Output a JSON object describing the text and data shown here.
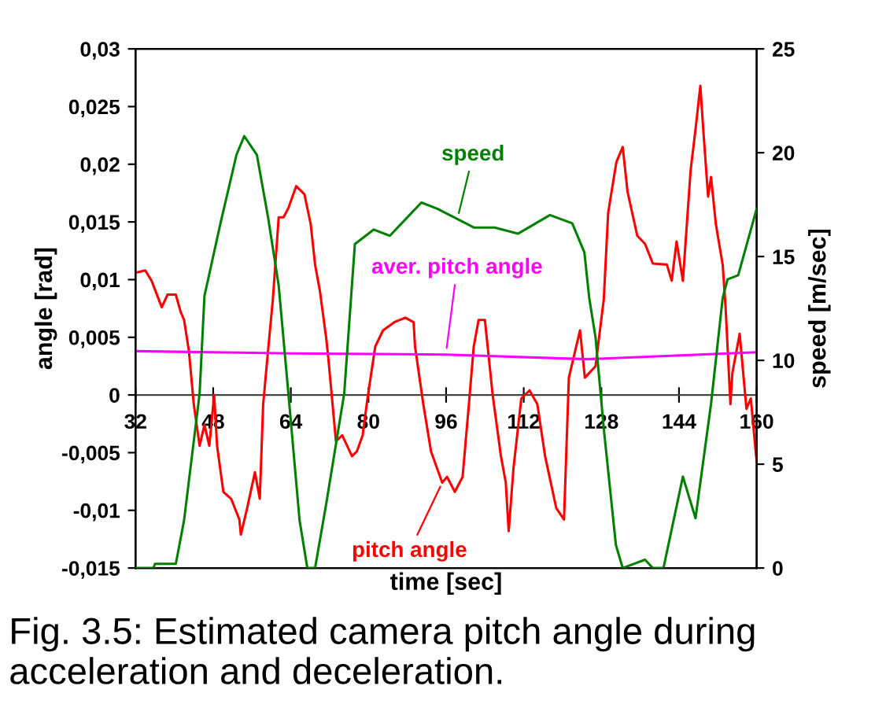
{
  "chart_data": {
    "type": "line",
    "xlabel": "time [sec]",
    "ylabel": "angle [rad]",
    "y2label": "speed [m/sec]",
    "xlim": [
      32,
      160
    ],
    "xticks": [
      32,
      48,
      64,
      80,
      96,
      112,
      128,
      144,
      160
    ],
    "ylim": [
      -0.015,
      0.03
    ],
    "yticks": [
      {
        "value": -0.015,
        "label": "-0,015"
      },
      {
        "value": -0.01,
        "label": "-0,01"
      },
      {
        "value": -0.005,
        "label": "-0,005"
      },
      0,
      {
        "value": 0.005,
        "label": "0,005"
      },
      {
        "value": 0.01,
        "label": "0,01"
      },
      {
        "value": 0.015,
        "label": "0,015"
      },
      {
        "value": 0.02,
        "label": "0,02"
      },
      {
        "value": 0.025,
        "label": "0,025"
      },
      {
        "value": 0.03,
        "label": "0,03"
      }
    ],
    "y2lim": [
      0,
      25
    ],
    "y2ticks": [
      0,
      5,
      10,
      15,
      20,
      25
    ],
    "grid": false,
    "legend": false,
    "marker": "none",
    "line_style": "solid",
    "series": [
      {
        "color": "#ff0000",
        "x": [
          32,
          34,
          35.3,
          37.4,
          38.6,
          40.3,
          41.3,
          42,
          43,
          44,
          45.2,
          46.2,
          47.2,
          48.2,
          48.8,
          50.1,
          51.7,
          53.4,
          53.7,
          55,
          56.6,
          57.6,
          58.3,
          59.3,
          60.3,
          61.5,
          62.5,
          63.5,
          65.1,
          66.8,
          68.1,
          69,
          70,
          71.3,
          71.7,
          73.3,
          74.6,
          76.6,
          77.6,
          78.8,
          79.8,
          81.4,
          83,
          85.3,
          87.6,
          89.3,
          89.6,
          91.3,
          92.9,
          95.2,
          96.2,
          97.8,
          99.4,
          100.7,
          101.7,
          102.7,
          104,
          105.6,
          107.3,
          108.3,
          108.9,
          109.9,
          111.5,
          113.2,
          114.8,
          116.4,
          118.7,
          120.3,
          121.3,
          123.6,
          124.6,
          126.8,
          128.5,
          129.4,
          131.1,
          132.4,
          133.4,
          135.4,
          137,
          138.6,
          141.5,
          142.5,
          143.5,
          144.8,
          146.4,
          147.4,
          148.4,
          149,
          150,
          150.6,
          151.6,
          153,
          153.6,
          154.6,
          155,
          156.5,
          157.9,
          158.8,
          159.8,
          160
        ],
        "values": [
          0.0106,
          0.0108,
          0.0099,
          0.0076,
          0.0087,
          0.0087,
          0.0072,
          0.0065,
          0.0038,
          -0.0008,
          -0.0044,
          -0.0026,
          -0.0044,
          0.0,
          -0.0044,
          -0.0084,
          -0.009,
          -0.0108,
          -0.0121,
          -0.0098,
          -0.0067,
          -0.009,
          -0.0008,
          0.0038,
          0.0083,
          0.0154,
          0.0154,
          0.0162,
          0.0181,
          0.0174,
          0.0148,
          0.0113,
          0.009,
          0.0049,
          0.0033,
          -0.004,
          -0.0035,
          -0.0053,
          -0.0049,
          -0.0035,
          -0.0003,
          0.0042,
          0.0056,
          0.0063,
          0.0067,
          0.0063,
          0.0042,
          -0.0008,
          -0.0049,
          -0.0076,
          -0.0071,
          -0.0084,
          -0.0071,
          -0.0008,
          0.0042,
          0.0065,
          0.0065,
          0.0,
          -0.0053,
          -0.0076,
          -0.0118,
          -0.0063,
          -0.0003,
          0.0004,
          -0.0008,
          -0.0053,
          -0.0098,
          -0.0108,
          0.0015,
          0.0056,
          0.0015,
          0.0025,
          0.0083,
          0.0158,
          0.0202,
          0.0215,
          0.0176,
          0.0138,
          0.0131,
          0.0114,
          0.0113,
          0.0099,
          0.0133,
          0.0099,
          0.0195,
          0.023,
          0.0268,
          0.023,
          0.0172,
          0.0189,
          0.0148,
          0.0113,
          0.0076,
          -0.0008,
          0.0019,
          0.0053,
          -0.0012,
          -0.0003,
          -0.0049,
          -0.0057
        ]
      },
      {
        "color": "#ff00ff",
        "x": [
          32,
          64,
          96,
          125,
          160
        ],
        "values": [
          0.0038,
          0.0036,
          0.0035,
          0.0031,
          0.0037
        ]
      },
      {
        "color": "#008000",
        "axis": "y2",
        "x": [
          32,
          35.7,
          36,
          40.3,
          42,
          45.2,
          46.2,
          49.5,
          52.8,
          54.4,
          57,
          59.3,
          61.5,
          63.5,
          65.8,
          67.4,
          69,
          71.3,
          75,
          77.2,
          81.1,
          84.4,
          90.9,
          94.2,
          98.4,
          101.7,
          106,
          110.8,
          117.4,
          122,
          124.5,
          125.5,
          126.8,
          128.5,
          131,
          132.4,
          137,
          138.6,
          140.8,
          144.8,
          147.4,
          150.6,
          153,
          154,
          156.2,
          160
        ],
        "values": [
          0,
          0,
          0.2,
          0.2,
          2.3,
          8.4,
          13.1,
          16.6,
          19.9,
          20.8,
          19.9,
          16.9,
          13.6,
          8.4,
          2.3,
          0,
          0,
          3.1,
          8.4,
          15.6,
          16.3,
          16.0,
          17.6,
          17.3,
          16.8,
          16.4,
          16.4,
          16.1,
          17.0,
          16.6,
          15.2,
          13.0,
          11.1,
          6.7,
          1.1,
          0,
          0.4,
          0,
          0,
          4.4,
          2.4,
          7.9,
          13.0,
          13.9,
          14.1,
          17.3
        ]
      }
    ],
    "annotations": [
      {
        "text": "speed",
        "x": 98.4,
        "y": 0.0154
      },
      {
        "text": "aver. pitch angle",
        "x": 96,
        "y": 0.0037
      },
      {
        "text": "pitch angle",
        "x": 95.2,
        "y": -0.0076
      },
      "Fig. 3.5: Estimated camera pitch angle during acceleration and deceleration."
    ]
  }
}
